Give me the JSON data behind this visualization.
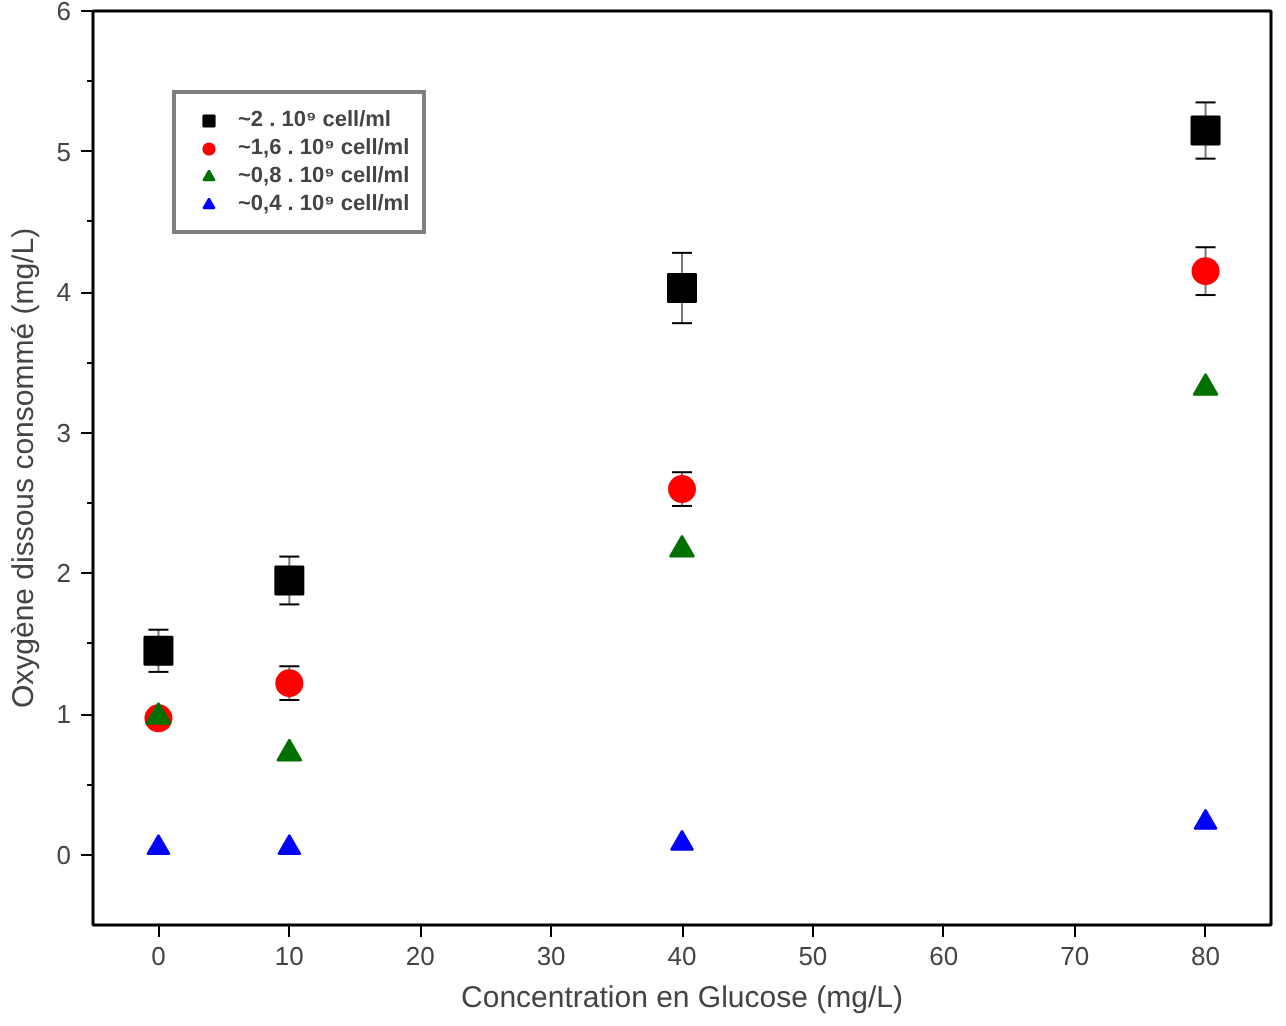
{
  "chart_data": {
    "type": "scatter",
    "xlabel": "Concentration en Glucose (mg/L)",
    "ylabel": "Oxygène dissous consommé (mg/L)",
    "x": [
      0,
      10,
      40,
      80
    ],
    "series": [
      {
        "name": "~2 . 10⁹ cell/ml",
        "color": "#000000",
        "marker": "square",
        "values": [
          1.45,
          1.95,
          4.03,
          5.15
        ],
        "errors": [
          0.15,
          0.17,
          0.25,
          0.2
        ]
      },
      {
        "name": "~1,6 . 10⁹ cell/ml",
        "color": "#ff0000",
        "marker": "circle",
        "values": [
          0.97,
          1.22,
          2.6,
          4.15
        ],
        "errors": [
          null,
          0.12,
          0.12,
          0.17
        ]
      },
      {
        "name": "~0,8 . 10⁹ cell/ml",
        "color": "#007000",
        "marker": "triangle",
        "values": [
          0.98,
          0.72,
          2.17,
          3.32
        ]
      },
      {
        "name": "~0,4 . 10⁹ cell/ml",
        "color": "#0000ff",
        "marker": "triangle",
        "values": [
          0.05,
          0.05,
          0.08,
          0.23
        ]
      }
    ],
    "xlim": [
      -5,
      85
    ],
    "ylim": [
      -0.5,
      6
    ],
    "xticks": [
      0,
      10,
      20,
      30,
      40,
      50,
      60,
      70,
      80
    ],
    "yticks": [
      0,
      1,
      2,
      3,
      4,
      5,
      6
    ],
    "grid": false,
    "legend": "top left"
  }
}
